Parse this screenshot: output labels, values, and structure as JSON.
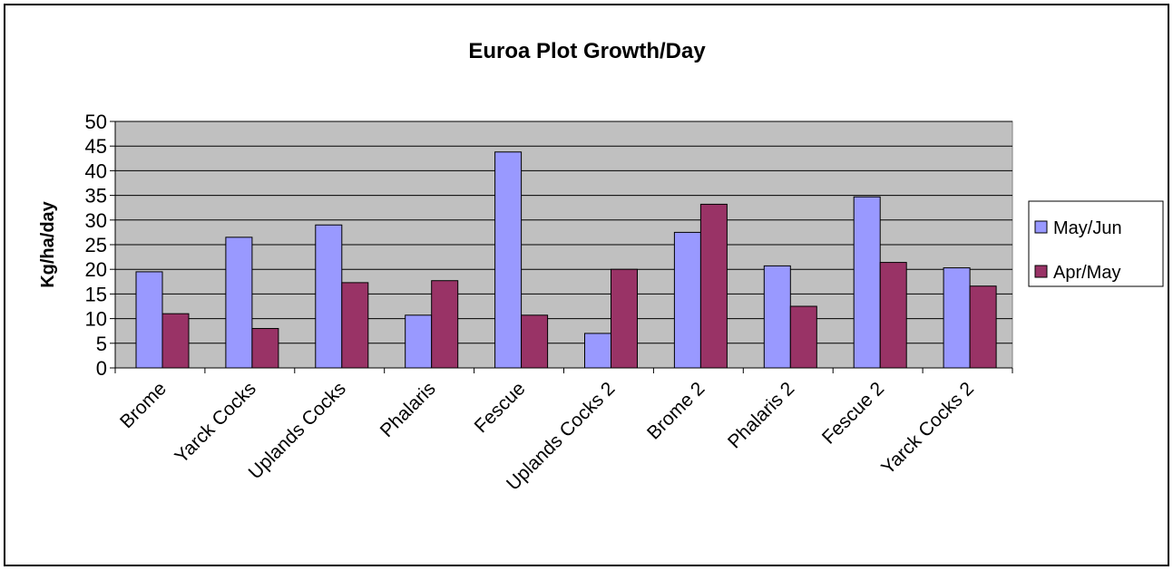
{
  "chart_data": {
    "type": "bar",
    "title": "Euroa Plot Growth/Day",
    "y_label": "Kg/ha/day",
    "categories": [
      "Brome",
      "Yarck Cocks",
      "Uplands Cocks",
      "Phalaris",
      "Fescue",
      "Uplands Cocks 2",
      "Brome 2",
      "Phalaris 2",
      "Fescue 2",
      "Yarck Cocks 2"
    ],
    "series": [
      {
        "name": "May/Jun",
        "color": "#9999ff",
        "values": [
          19.5,
          26.5,
          29,
          10.7,
          43.8,
          7,
          27.5,
          20.7,
          34.7,
          20.3
        ]
      },
      {
        "name": "Apr/May",
        "color": "#993366",
        "values": [
          11,
          8,
          17.3,
          17.7,
          10.7,
          20,
          33.2,
          12.5,
          21.4,
          16.6
        ]
      }
    ],
    "ylim": [
      0,
      50
    ],
    "yticks": [
      0,
      5,
      10,
      15,
      20,
      25,
      30,
      35,
      40,
      45,
      50
    ],
    "grid": true,
    "legend": "right"
  }
}
